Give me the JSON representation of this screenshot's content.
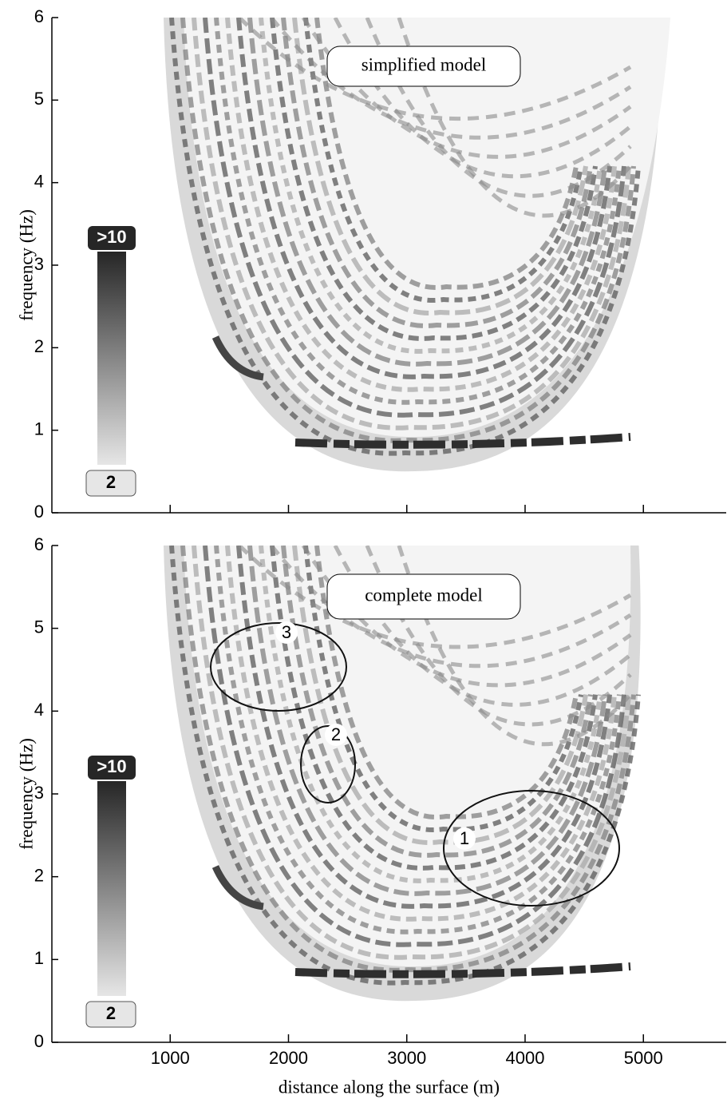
{
  "chart_data": [
    {
      "type": "contour",
      "annotation": "simplified model",
      "ylabel": "frequency (Hz)",
      "xlim": [
        0,
        5700
      ],
      "xticks": [
        1000,
        2000,
        3000,
        4000,
        5000
      ],
      "xtick_labels": false,
      "ylim": [
        0,
        6
      ],
      "yticks": [
        0,
        1,
        2,
        3,
        4,
        5,
        6
      ],
      "colorbar": {
        "ticks": [
          2,
          {
            "value": 10,
            "label": ">10"
          }
        ],
        "colors": [
          "#e6e6e6",
          "#262626"
        ]
      }
    },
    {
      "type": "contour",
      "annotation": "complete model",
      "ylabel": "frequency (Hz)",
      "xlabel": "distance along the surface (m)",
      "xlim": [
        0,
        5700
      ],
      "xticks": [
        1000,
        2000,
        3000,
        4000,
        5000
      ],
      "xtick_labels": true,
      "ylim": [
        0,
        6
      ],
      "yticks": [
        0,
        1,
        2,
        3,
        4,
        5,
        6
      ],
      "colorbar": {
        "ticks": [
          2,
          {
            "value": 10,
            "label": ">10"
          }
        ],
        "colors": [
          "#e6e6e6",
          "#262626"
        ]
      },
      "regions": [
        "1",
        "2",
        "3"
      ]
    }
  ]
}
